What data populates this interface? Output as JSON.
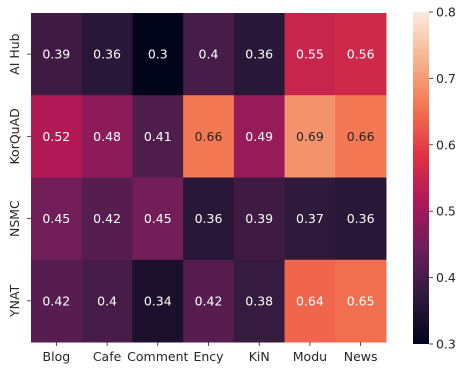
{
  "chart_data": {
    "type": "heatmap",
    "rows": [
      "AI Hub",
      "KorQuAD",
      "NSMC",
      "YNAT"
    ],
    "columns": [
      "Blog",
      "Cafe",
      "Comment",
      "Ency",
      "KiN",
      "Modu",
      "News"
    ],
    "values": [
      [
        0.39,
        0.36,
        0.3,
        0.4,
        0.36,
        0.55,
        0.56
      ],
      [
        0.52,
        0.48,
        0.41,
        0.66,
        0.49,
        0.69,
        0.66
      ],
      [
        0.45,
        0.42,
        0.45,
        0.36,
        0.39,
        0.37,
        0.36
      ],
      [
        0.42,
        0.4,
        0.34,
        0.42,
        0.38,
        0.64,
        0.65
      ]
    ],
    "value_labels": [
      [
        "0.39",
        "0.36",
        "0.3",
        "0.4",
        "0.36",
        "0.55",
        "0.56"
      ],
      [
        "0.52",
        "0.48",
        "0.41",
        "0.66",
        "0.49",
        "0.69",
        "0.66"
      ],
      [
        "0.45",
        "0.42",
        "0.45",
        "0.36",
        "0.39",
        "0.37",
        "0.36"
      ],
      [
        "0.42",
        "0.4",
        "0.34",
        "0.42",
        "0.38",
        "0.64",
        "0.65"
      ]
    ],
    "colorbar": {
      "min": 0.3,
      "max": 0.8,
      "ticks": [
        "0.3",
        "0.4",
        "0.5",
        "0.6",
        "0.7",
        "0.8"
      ]
    },
    "colormap": "rocket",
    "colormap_stops": [
      "#03051a",
      "#2f1a3c",
      "#6b1f59",
      "#ae1759",
      "#e13342",
      "#f37651",
      "#f6b48e",
      "#faebdd"
    ]
  }
}
